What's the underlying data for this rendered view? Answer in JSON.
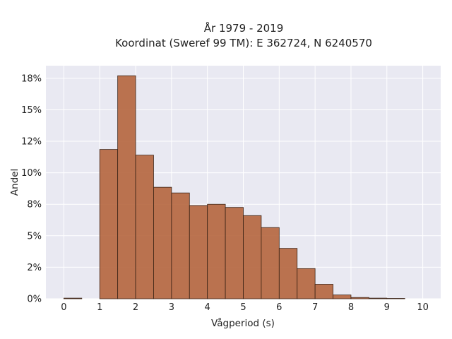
{
  "chart_data": {
    "type": "bar",
    "title": "År 1979 - 2019",
    "subtitle": "Koordinat (Sweref 99 TM): E 362724, N 6240570",
    "xlabel": "Vågperiod (s)",
    "ylabel": "Andel",
    "bin_width": 0.5,
    "bins": [
      {
        "start": 0.0,
        "value": 0.05
      },
      {
        "start": 0.5,
        "value": 0.0
      },
      {
        "start": 1.0,
        "value": 11.85
      },
      {
        "start": 1.5,
        "value": 17.7
      },
      {
        "start": 2.0,
        "value": 11.4
      },
      {
        "start": 2.5,
        "value": 8.85
      },
      {
        "start": 3.0,
        "value": 8.4
      },
      {
        "start": 3.5,
        "value": 7.4
      },
      {
        "start": 4.0,
        "value": 7.5
      },
      {
        "start": 4.5,
        "value": 7.25
      },
      {
        "start": 5.0,
        "value": 6.6
      },
      {
        "start": 5.5,
        "value": 5.65
      },
      {
        "start": 6.0,
        "value": 4.0
      },
      {
        "start": 6.5,
        "value": 2.4
      },
      {
        "start": 7.0,
        "value": 1.15
      },
      {
        "start": 7.5,
        "value": 0.3
      },
      {
        "start": 8.0,
        "value": 0.1
      },
      {
        "start": 8.5,
        "value": 0.05
      },
      {
        "start": 9.0,
        "value": 0.03
      },
      {
        "start": 9.5,
        "value": 0.0
      }
    ],
    "x_ticks": [
      {
        "value": 0,
        "label": "0"
      },
      {
        "value": 1,
        "label": "1"
      },
      {
        "value": 2,
        "label": "2"
      },
      {
        "value": 3,
        "label": "3"
      },
      {
        "value": 4,
        "label": "4"
      },
      {
        "value": 5,
        "label": "5"
      },
      {
        "value": 6,
        "label": "6"
      },
      {
        "value": 7,
        "label": "7"
      },
      {
        "value": 8,
        "label": "8"
      },
      {
        "value": 9,
        "label": "9"
      },
      {
        "value": 10,
        "label": "10"
      }
    ],
    "y_ticks": [
      {
        "value": 0,
        "label": "0%"
      },
      {
        "value": 2.5,
        "label": "2%"
      },
      {
        "value": 5,
        "label": "5%"
      },
      {
        "value": 7.5,
        "label": "8%"
      },
      {
        "value": 10,
        "label": "10%"
      },
      {
        "value": 12.5,
        "label": "12%"
      },
      {
        "value": 15,
        "label": "15%"
      },
      {
        "value": 17.5,
        "label": "18%"
      }
    ],
    "xlim": [
      -0.5,
      10.5
    ],
    "ylim": [
      0,
      18.5
    ],
    "grid": true,
    "colors": {
      "bar_fill": "#b5653d",
      "bar_edge": "#3b2417",
      "plot_bg": "#e9e9f2",
      "grid": "#ffffff"
    }
  }
}
